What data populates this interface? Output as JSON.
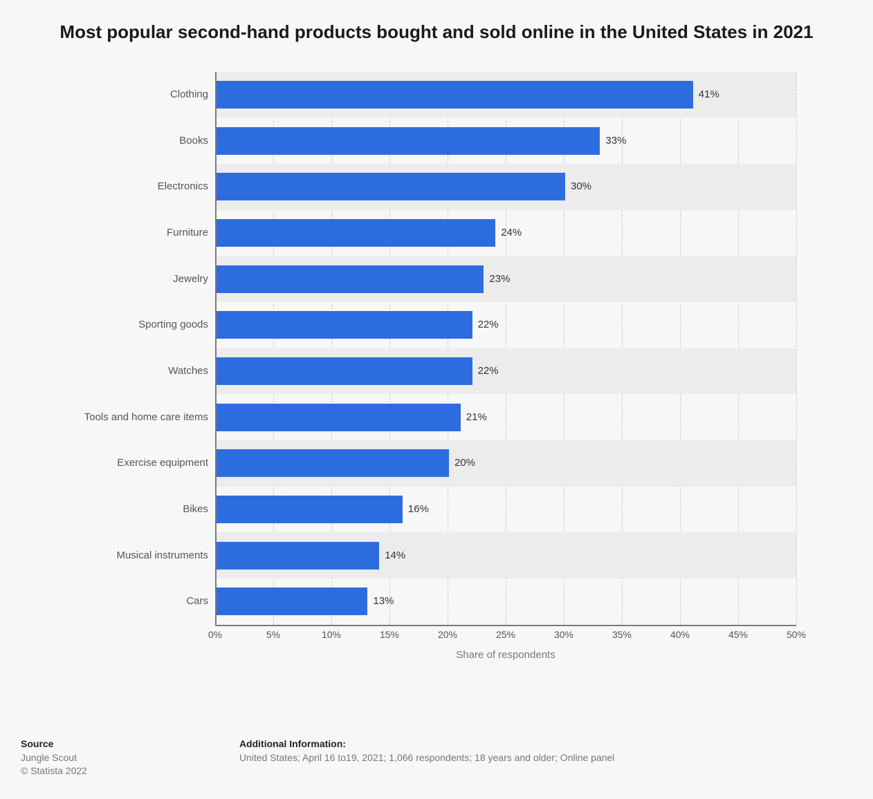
{
  "chart": {
    "type": "bar-horizontal",
    "title": "Most popular second-hand products bought and sold online in the United States in 2021",
    "x_axis_label": "Share of respondents",
    "background_color": "#f7f7f7",
    "bar_color": "#2d6cdf",
    "band_color_alt": "#ececec",
    "grid_color": "#c9c9c9",
    "axis_color": "#7a7a7a",
    "text_color": "#555555",
    "value_color": "#333333",
    "title_fontsize": 26,
    "label_fontsize": 15,
    "tick_fontsize": 14,
    "xmin": 0,
    "xmax": 50,
    "xtick_step": 5,
    "xtick_suffix": "%",
    "value_suffix": "%",
    "categories": [
      "Clothing",
      "Books",
      "Electronics",
      "Furniture",
      "Jewelry",
      "Sporting goods",
      "Watches",
      "Tools and home care items",
      "Exercise equipment",
      "Bikes",
      "Musical instruments",
      "Cars"
    ],
    "values": [
      41,
      33,
      30,
      24,
      23,
      22,
      22,
      21,
      20,
      16,
      14,
      13
    ]
  },
  "footer": {
    "source_heading": "Source",
    "source_line1": "Jungle Scout",
    "source_line2": "© Statista 2022",
    "info_heading": "Additional Information:",
    "info_text": "United States; April 16 to19, 2021; 1,066 respondents; 18 years and older; Online panel"
  }
}
